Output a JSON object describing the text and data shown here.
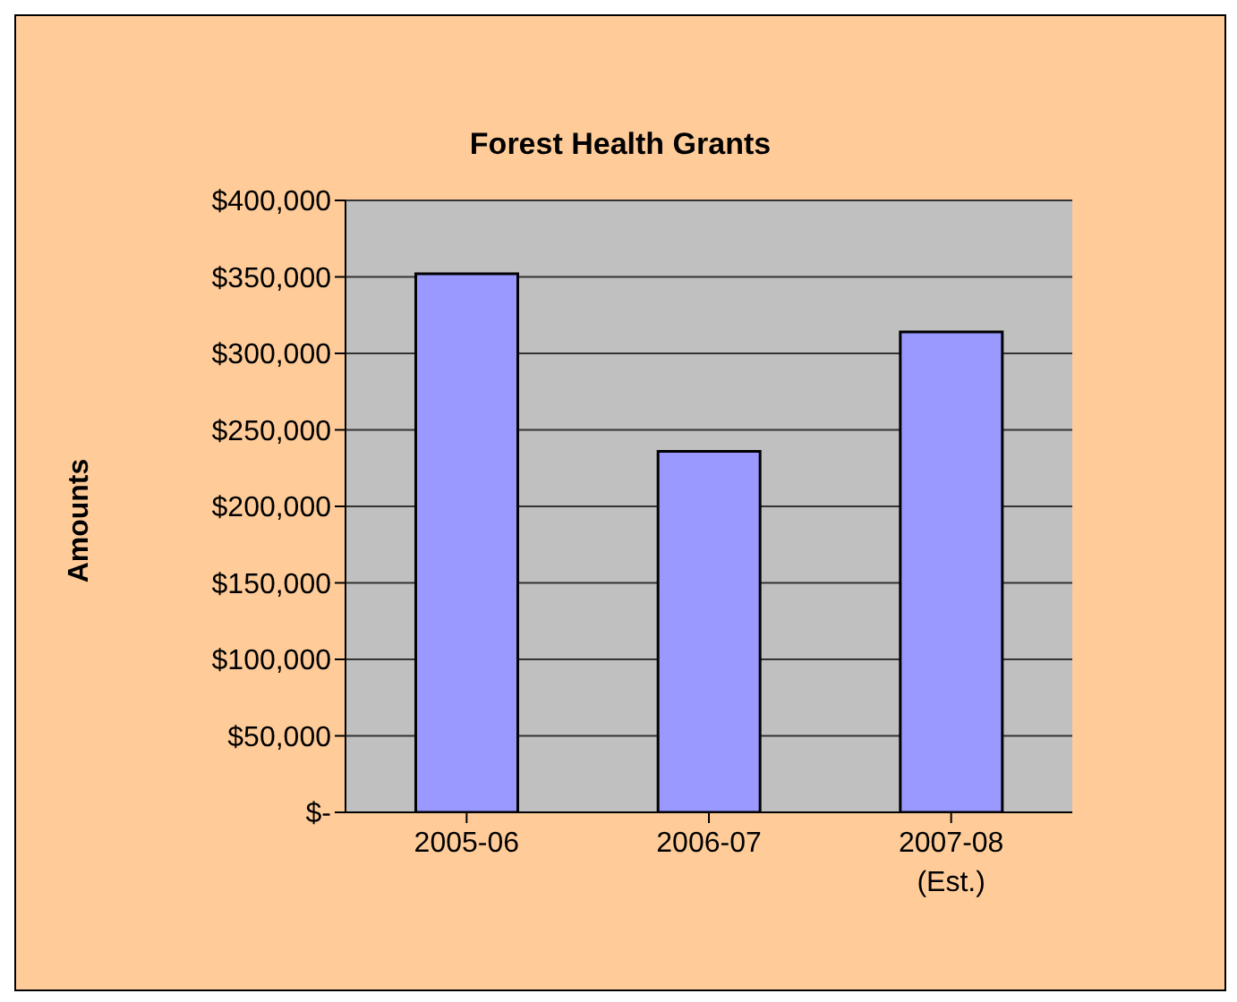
{
  "chart_data": {
    "type": "bar",
    "title": "Forest Health Grants",
    "ylabel": "Amounts",
    "categories": [
      "2005-06",
      "2006-07",
      "2007-08\n(Est.)"
    ],
    "values": [
      352000,
      236000,
      314000
    ],
    "color": "#9999ff",
    "ylim": [
      0,
      400000
    ],
    "yticks": [
      {
        "value": 0,
        "label": "$-"
      },
      {
        "value": 50000,
        "label": "$50,000"
      },
      {
        "value": 100000,
        "label": "$100,000"
      },
      {
        "value": 150000,
        "label": "$150,000"
      },
      {
        "value": 200000,
        "label": "$200,000"
      },
      {
        "value": 250000,
        "label": "$250,000"
      },
      {
        "value": 300000,
        "label": "$300,000"
      },
      {
        "value": 350000,
        "label": "$350,000"
      },
      {
        "value": 400000,
        "label": "$400,000"
      }
    ],
    "grid": "y",
    "legend": false
  }
}
